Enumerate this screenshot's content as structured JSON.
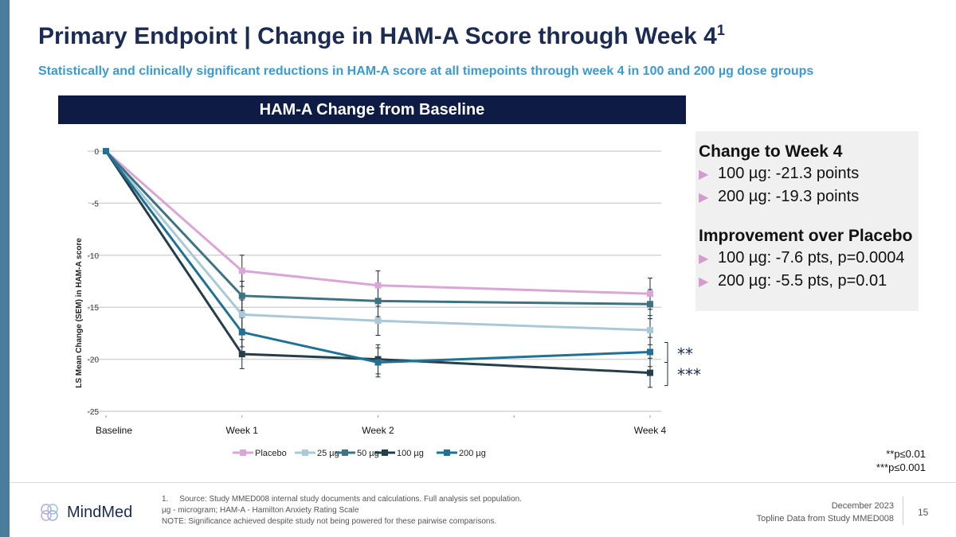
{
  "title": "Primary Endpoint | Change in HAM-A Score through Week 4",
  "title_sup": "1",
  "subtitle": "Statistically and clinically significant reductions in HAM-A score at all timepoints through week 4 in 100 and 200 µg dose groups",
  "chart_header": "HAM-A Change from Baseline",
  "panel": {
    "h1": "Change to Week 4",
    "items1": [
      "100 µg: -21.3 points",
      "200 µg: -19.3 points"
    ],
    "h2": "Improvement over Placebo",
    "items2": [
      "100 µg: -7.6 pts, p=0.0004",
      "200 µg: -5.5 pts, p=0.01"
    ]
  },
  "significance": {
    "marker_200": "**",
    "marker_100": "***",
    "note1": "**p≤0.01",
    "note2": "***p≤0.001"
  },
  "chart_data": {
    "type": "line",
    "ylabel": "LS Mean Change (SEM) in HAM-A score",
    "ylim": [
      -25,
      0
    ],
    "yticks": [
      0,
      -5,
      -10,
      -15,
      -20,
      -25
    ],
    "xlim": [
      0,
      4
    ],
    "x": [
      0,
      1,
      2,
      4
    ],
    "xticklabels": [
      "Baseline",
      "Week 1",
      "Week 2",
      "Week 4"
    ],
    "grid": true,
    "legend": "bottom",
    "series": [
      {
        "name": "Placebo",
        "color": "#d9a6d6",
        "values": [
          0,
          -11.5,
          -12.9,
          -13.7
        ],
        "sem": [
          0,
          1.5,
          1.4,
          1.5
        ]
      },
      {
        "name": "25 µg",
        "color": "#a9c9d6",
        "values": [
          0,
          -15.7,
          -16.3,
          -17.2
        ],
        "sem": [
          0,
          1.4,
          1.4,
          1.4
        ]
      },
      {
        "name": "50 µg",
        "color": "#3e7482",
        "values": [
          0,
          -13.9,
          -14.4,
          -14.7
        ],
        "sem": [
          0,
          1.4,
          1.5,
          1.4
        ]
      },
      {
        "name": "100 µg",
        "color": "#253f4a",
        "values": [
          0,
          -19.5,
          -20.0,
          -21.3
        ],
        "sem": [
          0,
          1.4,
          1.4,
          1.4
        ]
      },
      {
        "name": "200 µg",
        "color": "#1f7196",
        "values": [
          0,
          -17.4,
          -20.3,
          -19.3
        ],
        "sem": [
          0,
          1.4,
          1.4,
          1.4
        ]
      }
    ]
  },
  "footer": {
    "logo": "MindMed",
    "note1": "1.     Source: Study MMED008 internal study documents and calculations. Full analysis set population.",
    "note2": "µg - microgram; HAM-A - Hamilton Anxiety Rating Scale",
    "note3": "NOTE: Significance achieved despite study not being powered for these pairwise comparisons.",
    "date": "December 2023",
    "topline": "Topline Data from Study MMED008",
    "page": "15"
  }
}
